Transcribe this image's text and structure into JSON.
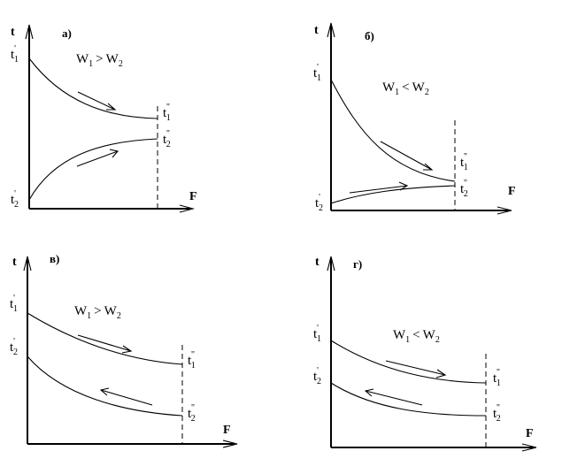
{
  "panels": [
    {
      "id": "a",
      "tag": "а)",
      "axis_y": "t",
      "axis_x": "F",
      "relation": {
        "w1": "W",
        "w1_sub": "1",
        "op": ">",
        "w2": "W",
        "w2_sub": "2"
      },
      "hot_in": {
        "base": "t",
        "prime": "'",
        "sub": "1"
      },
      "hot_out": {
        "base": "t",
        "prime": "''",
        "sub": "1"
      },
      "cold_in": {
        "base": "t",
        "prime": "'",
        "sub": "2"
      },
      "cold_out": {
        "base": "t",
        "prime": "''",
        "sub": "2"
      },
      "flow": "parallel"
    },
    {
      "id": "b",
      "tag": "б)",
      "axis_y": "t",
      "axis_x": "F",
      "relation": {
        "w1": "W",
        "w1_sub": "1",
        "op": "<",
        "w2": "W",
        "w2_sub": "2"
      },
      "hot_in": {
        "base": "t",
        "prime": "'",
        "sub": "1"
      },
      "hot_out": {
        "base": "t",
        "prime": "''",
        "sub": "1"
      },
      "cold_in": {
        "base": "t",
        "prime": "'",
        "sub": "2"
      },
      "cold_out": {
        "base": "t",
        "prime": "''",
        "sub": "2"
      },
      "flow": "parallel"
    },
    {
      "id": "v",
      "tag": "в)",
      "axis_y": "t",
      "axis_x": "F",
      "relation": {
        "w1": "W",
        "w1_sub": "1",
        "op": ">",
        "w2": "W",
        "w2_sub": "2"
      },
      "hot_in": {
        "base": "t",
        "prime": "'",
        "sub": "1"
      },
      "hot_out": {
        "base": "t",
        "prime": "''",
        "sub": "1"
      },
      "cold_in": {
        "base": "t",
        "prime": "'",
        "sub": "2"
      },
      "cold_out": {
        "base": "t",
        "prime": "''",
        "sub": "2"
      },
      "flow": "counter"
    },
    {
      "id": "g",
      "tag": "г)",
      "axis_y": "t",
      "axis_x": "F",
      "relation": {
        "w1": "W",
        "w1_sub": "1",
        "op": "<",
        "w2": "W",
        "w2_sub": "2"
      },
      "hot_in": {
        "base": "t",
        "prime": "'",
        "sub": "1"
      },
      "hot_out": {
        "base": "t",
        "prime": "''",
        "sub": "1"
      },
      "cold_in": {
        "base": "t",
        "prime": "'",
        "sub": "2"
      },
      "cold_out": {
        "base": "t",
        "prime": "''",
        "sub": "2"
      },
      "flow": "counter"
    }
  ],
  "colors": {
    "ink": "#000000",
    "background": "#ffffff"
  }
}
